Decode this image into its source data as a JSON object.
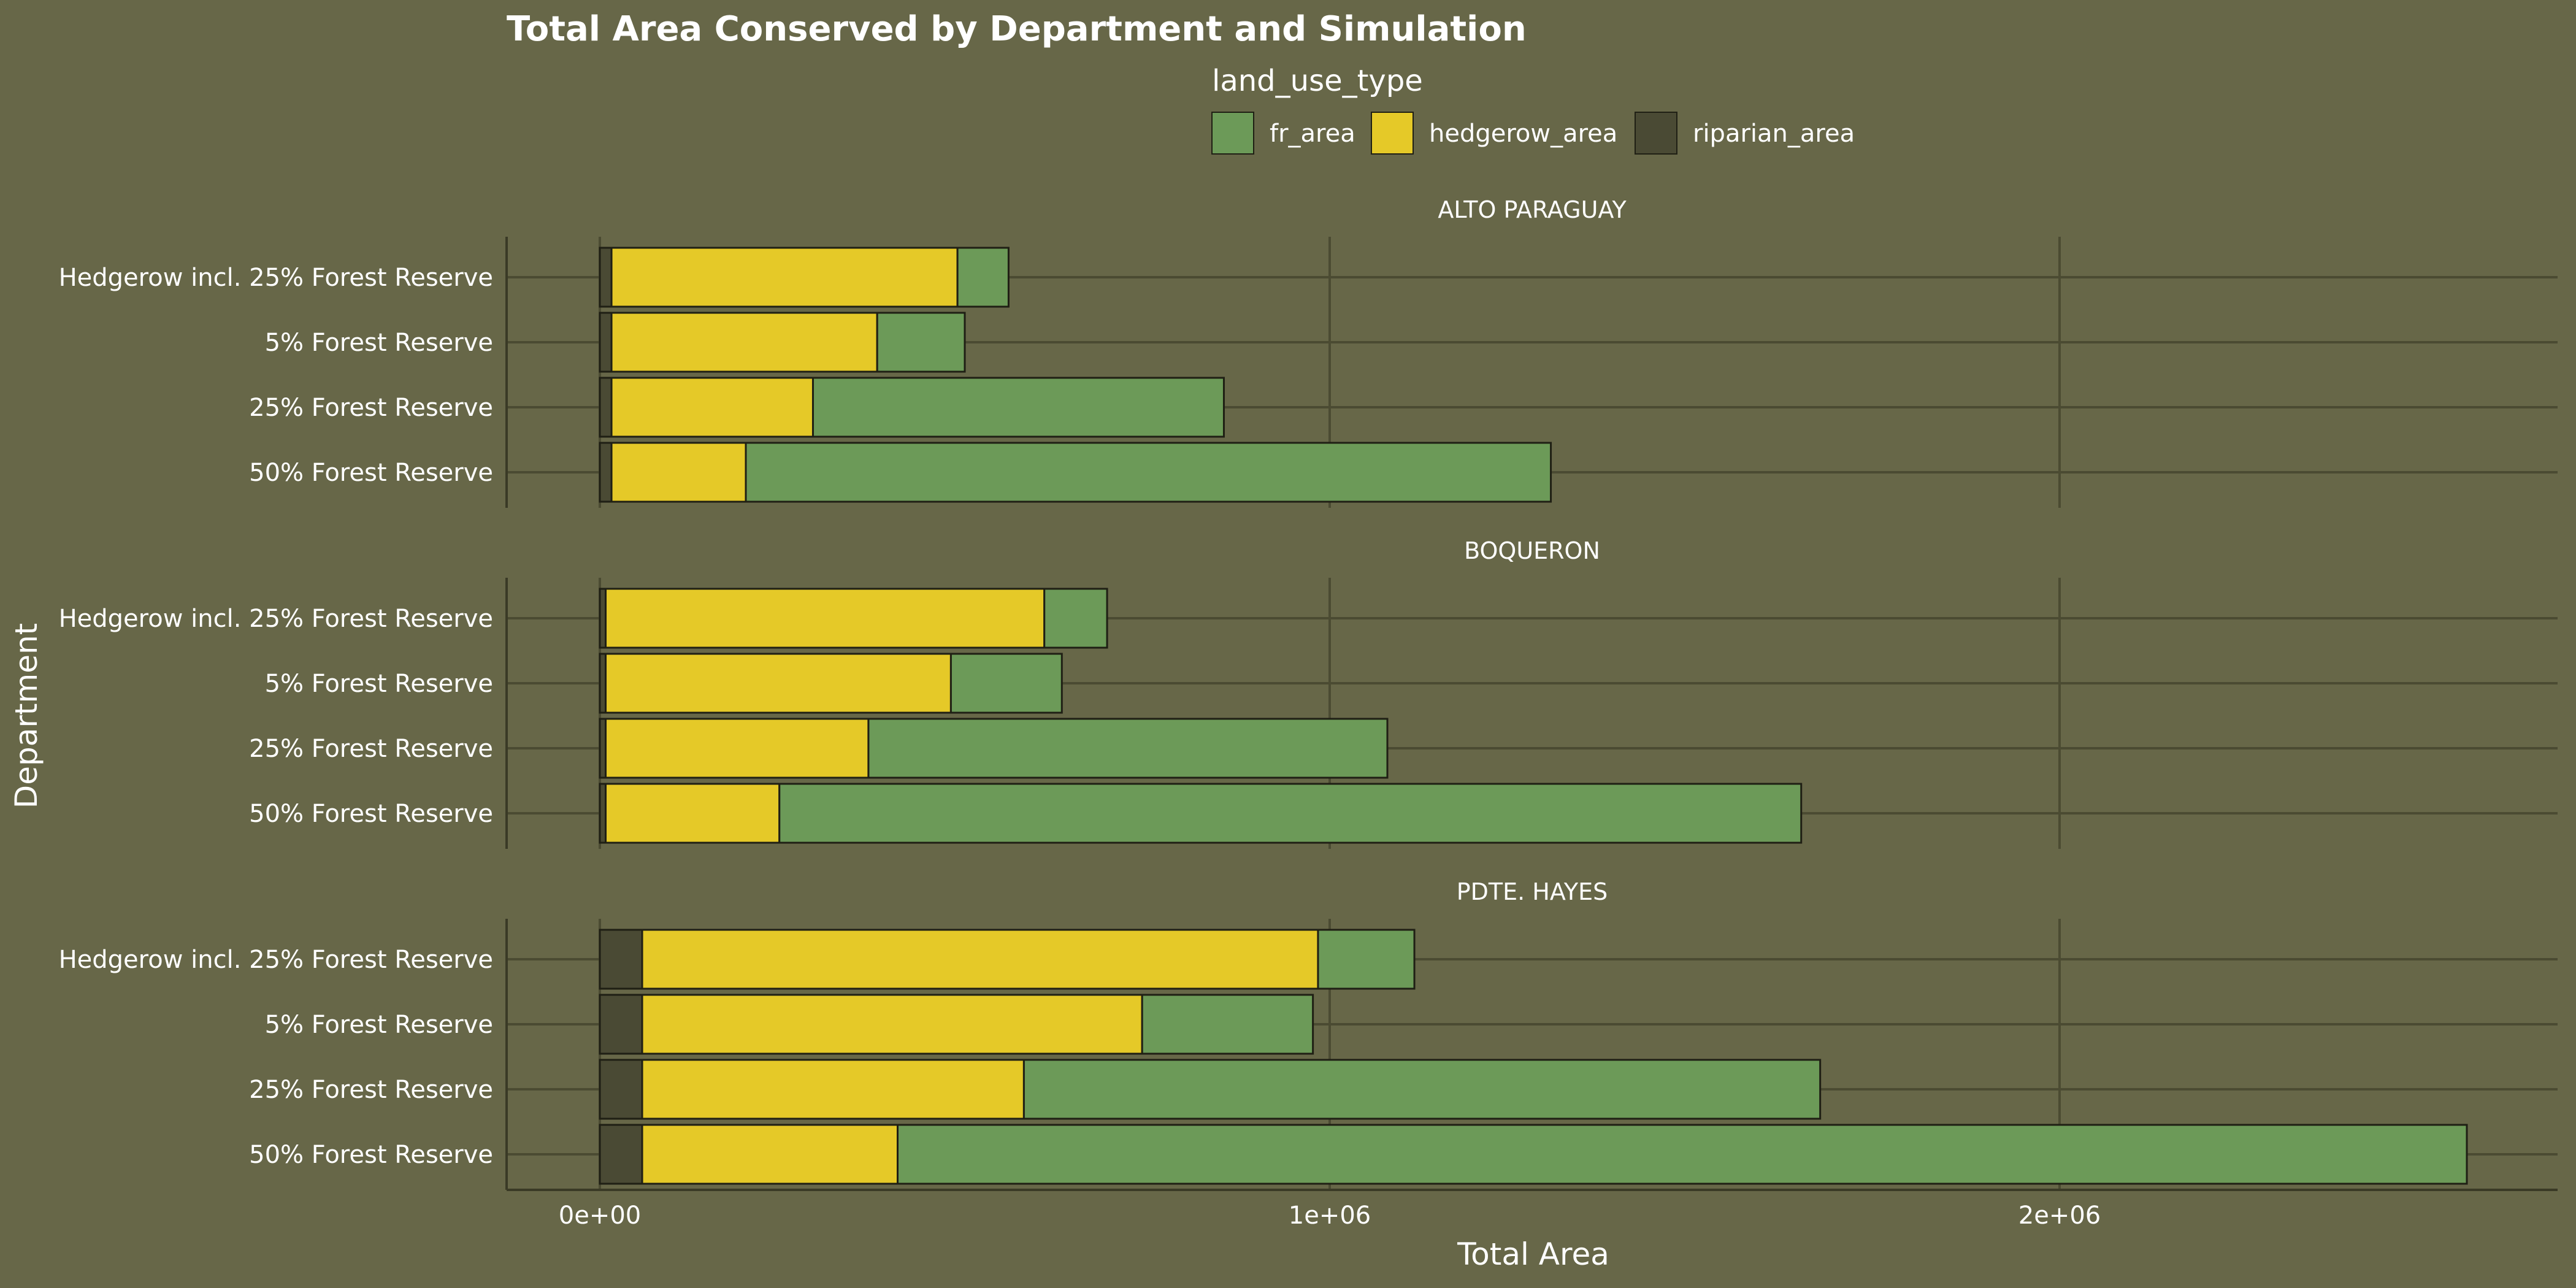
{
  "chart_data": {
    "type": "bar",
    "orientation": "horizontal",
    "stacked": true,
    "title": "Total Area Conserved by Department and Simulation",
    "xlabel": "Total Area",
    "ylabel": "Department",
    "xlim": [
      -130000,
      2670000
    ],
    "x_ticks": [
      0,
      1000000,
      2000000
    ],
    "x_tick_labels": [
      "0e+00",
      "1e+06",
      "2e+06"
    ],
    "grid": true,
    "legend": {
      "title": "land_use_type",
      "position": "top",
      "entries": [
        "fr_area",
        "hedgerow_area",
        "riparian_area"
      ]
    },
    "colors": {
      "background": "#676748",
      "grid": "#4b4b32",
      "fr_area": "#6c9a58",
      "hedgerow_area": "#e5c928",
      "riparian_area": "#4a4a34",
      "bar_outline": "#1f1f14",
      "text": "#ffffff"
    },
    "stack_order": [
      "riparian_area",
      "hedgerow_area",
      "fr_area"
    ],
    "categories": [
      "Hedgerow incl. 25% Forest Reserve",
      "5% Forest Reserve",
      "25% Forest Reserve",
      "50% Forest Reserve"
    ],
    "panels": [
      {
        "name": "ALTO PARAGUAY",
        "series": [
          {
            "name": "riparian_area",
            "values": [
              16000,
              16000,
              16000,
              16000
            ]
          },
          {
            "name": "hedgerow_area",
            "values": [
              474000,
              364000,
              276000,
              184000
            ]
          },
          {
            "name": "fr_area",
            "values": [
              70000,
              120000,
              563000,
              1103000
            ]
          }
        ]
      },
      {
        "name": "BOQUERON",
        "series": [
          {
            "name": "riparian_area",
            "values": [
              8000,
              8000,
              8000,
              8000
            ]
          },
          {
            "name": "hedgerow_area",
            "values": [
              601000,
              473000,
              360000,
              238000
            ]
          },
          {
            "name": "fr_area",
            "values": [
              86000,
              152000,
              711000,
              1400000
            ]
          }
        ]
      },
      {
        "name": "PDTE. HAYES",
        "series": [
          {
            "name": "riparian_area",
            "values": [
              58000,
              58000,
              58000,
              58000
            ]
          },
          {
            "name": "hedgerow_area",
            "values": [
              926000,
              685000,
              523000,
              350000
            ]
          },
          {
            "name": "fr_area",
            "values": [
              132000,
              234000,
              1091000,
              2150000
            ]
          }
        ]
      }
    ]
  }
}
